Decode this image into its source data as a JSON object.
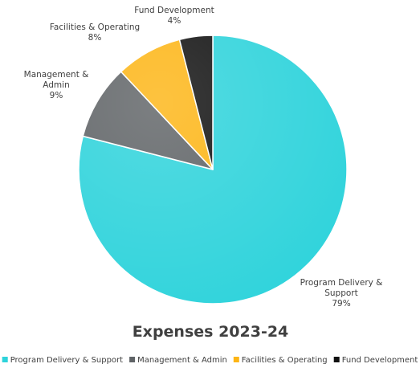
{
  "chart_data": {
    "type": "pie",
    "title": "Expenses 2023-24",
    "start_angle_deg": 0,
    "direction": "clockwise",
    "legend_position": "bottom",
    "slices": [
      {
        "name": "Program Delivery & Support",
        "label_lines": [
          "Program Delivery &",
          "Support"
        ],
        "value": 79,
        "value_label": "79%",
        "color": "#2ED3DB"
      },
      {
        "name": "Management & Admin",
        "label_lines": [
          "Management &",
          "Admin"
        ],
        "value": 9,
        "value_label": "9%",
        "color": "#5F6366"
      },
      {
        "name": "Facilities & Operating",
        "label_lines": [
          "Facilities & Operating"
        ],
        "value": 8,
        "value_label": "8%",
        "color": "#FDB515"
      },
      {
        "name": "Fund Development",
        "label_lines": [
          "Fund Development"
        ],
        "value": 4,
        "value_label": "4%",
        "color": "#111111"
      }
    ]
  }
}
